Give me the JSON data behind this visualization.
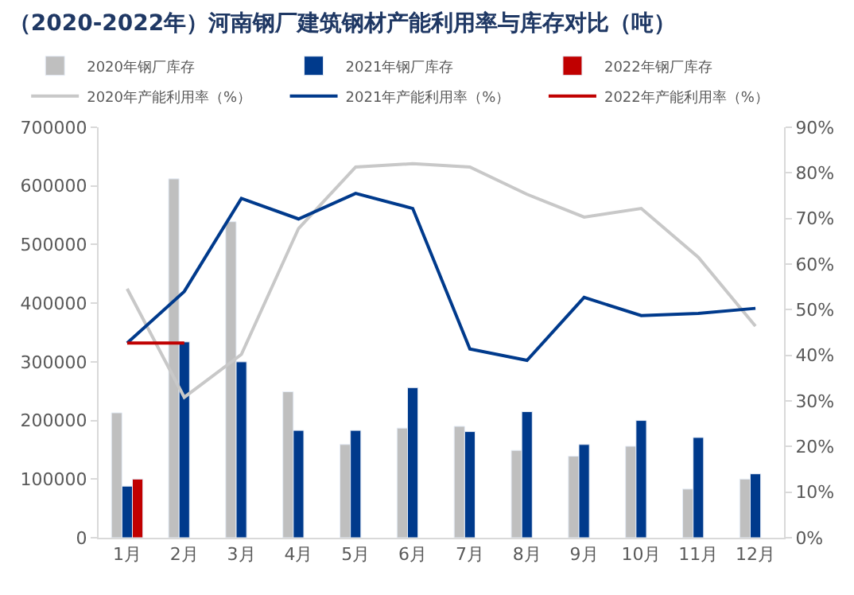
{
  "chart_data": {
    "type": "bar",
    "title": "（2020-2022年）河南钢厂建筑钢材产能利用率与库存对比（吨）",
    "categories": [
      "1月",
      "2月",
      "3月",
      "4月",
      "5月",
      "6月",
      "7月",
      "8月",
      "9月",
      "10月",
      "11月",
      "12月"
    ],
    "series": [
      {
        "name": "2020年钢厂库存",
        "color": "#bfbfbf",
        "values": [
          213000,
          612000,
          539000,
          249000,
          159000,
          187000,
          190000,
          149000,
          139000,
          156000,
          83000,
          100000
        ]
      },
      {
        "name": "2021年钢厂库存",
        "color": "#003a8c",
        "values": [
          88000,
          334000,
          300000,
          183000,
          183000,
          256000,
          181000,
          215000,
          159000,
          200000,
          171000,
          109000
        ]
      },
      {
        "name": "2022年钢厂库存",
        "color": "#c00000",
        "values": [
          100000,
          null,
          null,
          null,
          null,
          null,
          null,
          null,
          null,
          null,
          null,
          null
        ]
      },
      {
        "name": "2020年产能利用率（%）",
        "type": "line",
        "axis": "y2",
        "color": "#c8c8c8",
        "values": [
          54.6,
          30.8,
          40.2,
          67.8,
          81.3,
          82.0,
          81.3,
          75.3,
          70.3,
          72.2,
          61.5,
          46.4
        ]
      },
      {
        "name": "2021年产能利用率（%）",
        "type": "line",
        "axis": "y2",
        "color": "#003a8c",
        "values": [
          42.7,
          54.0,
          74.4,
          69.9,
          75.5,
          72.2,
          41.4,
          38.9,
          52.7,
          48.7,
          49.2,
          50.3
        ]
      },
      {
        "name": "2022年产能利用率（%）",
        "type": "line",
        "axis": "y2",
        "color": "#c00000",
        "values": [
          42.7,
          42.7,
          null,
          null,
          null,
          null,
          null,
          null,
          null,
          null,
          null,
          null
        ]
      }
    ],
    "ylim": [
      0,
      700000
    ],
    "yticks": [
      0,
      100000,
      200000,
      300000,
      400000,
      500000,
      600000,
      700000
    ],
    "y2lim": [
      0,
      90
    ],
    "y2ticks": [
      {
        "value": 0,
        "label": "0%"
      },
      {
        "value": 10,
        "label": "10%"
      },
      {
        "value": 20,
        "label": "20%"
      },
      {
        "value": 30,
        "label": "30%"
      },
      {
        "value": 40,
        "label": "40%"
      },
      {
        "value": 50,
        "label": "50%"
      },
      {
        "value": 60,
        "label": "60%"
      },
      {
        "value": 70,
        "label": "70%"
      },
      {
        "value": 80,
        "label": "80%"
      },
      {
        "value": 90,
        "label": "90%"
      }
    ],
    "legend": "top",
    "marker": "none",
    "line_style": "solid"
  }
}
